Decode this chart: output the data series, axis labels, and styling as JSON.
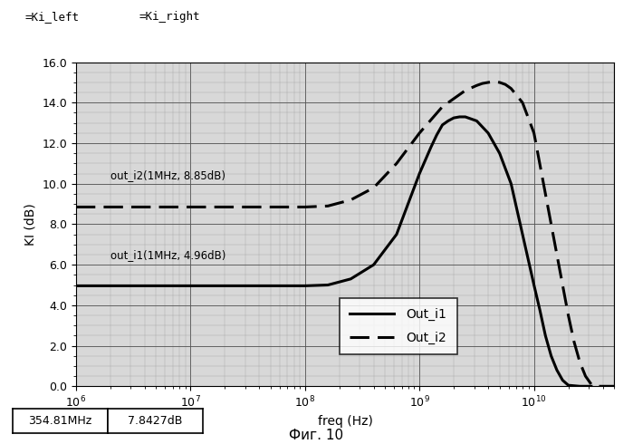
{
  "xlabel": "freq (Hz)",
  "ylabel": "KI (dB)",
  "ylim": [
    0.0,
    16.0
  ],
  "xlim": [
    1000000.0,
    50000000000.0
  ],
  "yticks": [
    0.0,
    2.0,
    4.0,
    6.0,
    8.0,
    10.0,
    12.0,
    14.0,
    16.0
  ],
  "legend_labels": [
    "Out_i1",
    "Out_i2"
  ],
  "annotation1": "out_i2(1MHz, 8.85dB)",
  "annotation2": "out_i1(1MHz, 4.96dB)",
  "status_left": "354.81MHz",
  "status_right": "7.8427dB",
  "header_left": "=Ki_left",
  "header_right": "=Ki_right",
  "fig_label": "Фиг. 10",
  "curve1_color": "#000000",
  "curve2_color": "#000000",
  "background_color": "#ffffff",
  "plot_bg_color": "#d8d8d8",
  "curve1": {
    "log_freq": [
      6.0,
      6.5,
      7.0,
      7.5,
      8.0,
      8.2,
      8.4,
      8.6,
      8.8,
      9.0,
      9.1,
      9.15,
      9.2,
      9.25,
      9.3,
      9.35,
      9.4,
      9.5,
      9.6,
      9.7,
      9.8,
      9.9,
      10.0,
      10.05,
      10.1,
      10.15,
      10.2,
      10.25,
      10.3,
      10.4,
      10.5
    ],
    "dB": [
      4.96,
      4.96,
      4.96,
      4.96,
      4.96,
      5.0,
      5.3,
      6.0,
      7.5,
      10.5,
      11.8,
      12.4,
      12.9,
      13.1,
      13.25,
      13.3,
      13.3,
      13.1,
      12.5,
      11.5,
      10.0,
      7.5,
      5.0,
      3.8,
      2.5,
      1.5,
      0.8,
      0.3,
      0.05,
      0.0,
      0.0
    ]
  },
  "curve2": {
    "log_freq": [
      6.0,
      6.5,
      7.0,
      7.5,
      8.0,
      8.2,
      8.4,
      8.6,
      8.8,
      9.0,
      9.2,
      9.4,
      9.5,
      9.55,
      9.6,
      9.65,
      9.7,
      9.75,
      9.8,
      9.9,
      10.0,
      10.1,
      10.2,
      10.3,
      10.35,
      10.4,
      10.45,
      10.5,
      10.55,
      10.6,
      10.65,
      10.7
    ],
    "dB": [
      8.85,
      8.85,
      8.85,
      8.85,
      8.85,
      8.9,
      9.2,
      9.8,
      11.0,
      12.5,
      13.8,
      14.6,
      14.85,
      14.95,
      15.0,
      15.05,
      15.0,
      14.9,
      14.7,
      14.0,
      12.5,
      9.5,
      6.5,
      3.5,
      2.2,
      1.2,
      0.5,
      0.1,
      0.0,
      0.0,
      0.0,
      0.0
    ]
  }
}
